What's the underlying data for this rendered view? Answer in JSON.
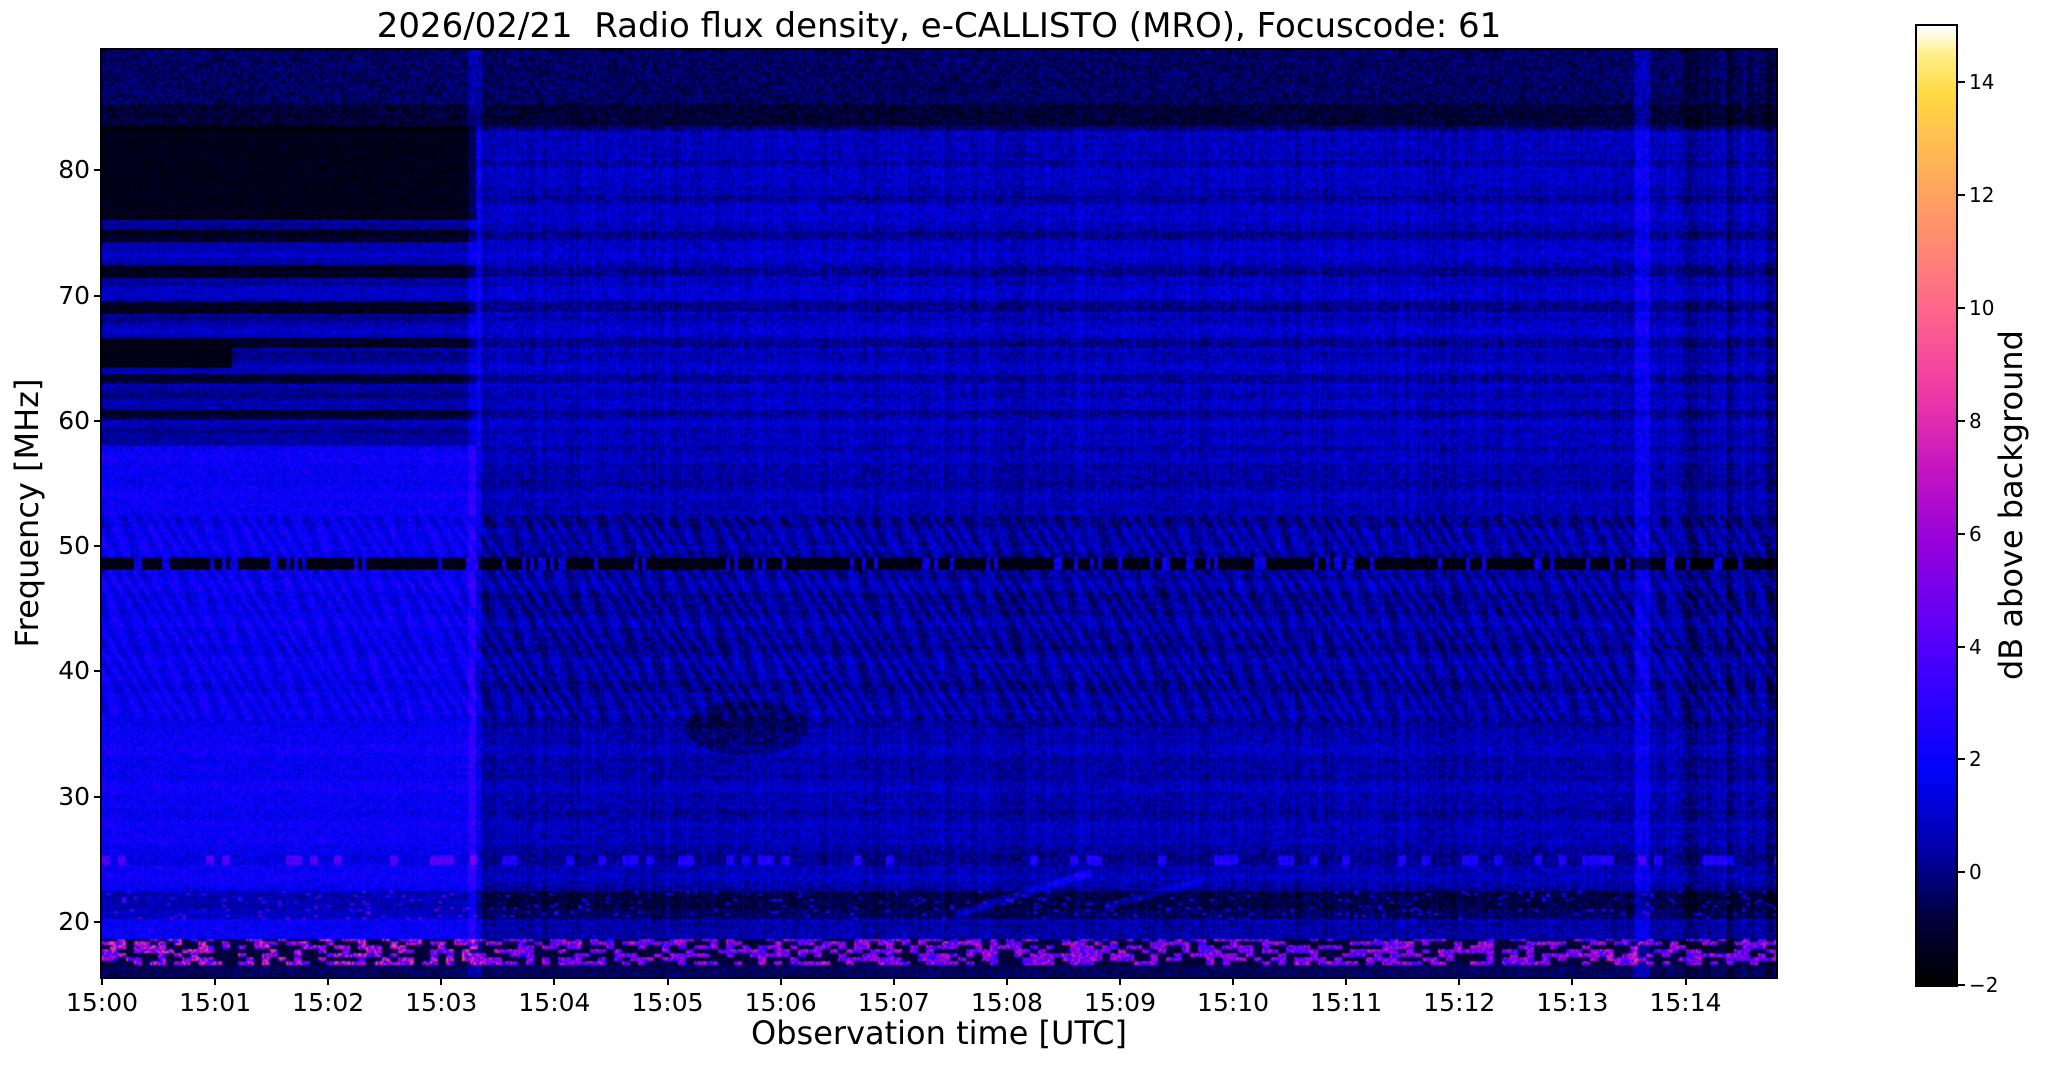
{
  "chart_data": {
    "type": "heatmap",
    "title": "2026/02/21  Radio flux density, e-CALLISTO (MRO), Focuscode: 61",
    "xlabel": "Observation time [UTC]",
    "ylabel": "Frequency [MHz]",
    "colorbar_label": "dB above background",
    "x_tick_labels": [
      "15:00",
      "15:01",
      "15:02",
      "15:03",
      "15:04",
      "15:05",
      "15:06",
      "15:07",
      "15:08",
      "15:09",
      "15:10",
      "15:11",
      "15:12",
      "15:13",
      "15:14"
    ],
    "x_range_minutes": [
      0,
      14.8
    ],
    "y_tick_values": [
      20,
      30,
      40,
      50,
      60,
      70,
      80
    ],
    "y_range_mhz": [
      15.6,
      89.6
    ],
    "colorbar_tick_values": [
      -2,
      0,
      2,
      4,
      6,
      8,
      10,
      12,
      14
    ],
    "color_range_db": [
      -2,
      15
    ],
    "colormap_stops": [
      [
        0.0,
        "#000000"
      ],
      [
        0.07,
        "#00003e"
      ],
      [
        0.14,
        "#0000a8"
      ],
      [
        0.22,
        "#0004f8"
      ],
      [
        0.3,
        "#3000ff"
      ],
      [
        0.38,
        "#6400f6"
      ],
      [
        0.46,
        "#9600dc"
      ],
      [
        0.54,
        "#c615c2"
      ],
      [
        0.62,
        "#ee3ba6"
      ],
      [
        0.7,
        "#ff648c"
      ],
      [
        0.78,
        "#ff8c70"
      ],
      [
        0.86,
        "#ffb455"
      ],
      [
        0.93,
        "#ffd943"
      ],
      [
        0.97,
        "#ffef86"
      ],
      [
        1.0,
        "#ffffff"
      ]
    ],
    "features": {
      "segment_boundary_min": 3.3,
      "left_lower_brightness_db": 1.9,
      "left_upper_brightness_db": 0.45,
      "post_brightness_db": 0.55,
      "dark_patch": {
        "t_min": 0,
        "t_max": 3.3,
        "f_min": 76,
        "f_max": 83.5,
        "db": -1.5
      },
      "rfi_dark_line_mhz": 48.6,
      "dark_band_mhz": [
        20.3,
        22.5
      ],
      "dotted_line_mhz": 25,
      "bottom_speckle_band_mhz": [
        16.6,
        18.7
      ],
      "bottom_speckle_max_db": 8,
      "bright_column_min": 13.55,
      "right_noisy_region_min": 13.75,
      "ripple_band_mhz": [
        36,
        52.5
      ]
    }
  }
}
